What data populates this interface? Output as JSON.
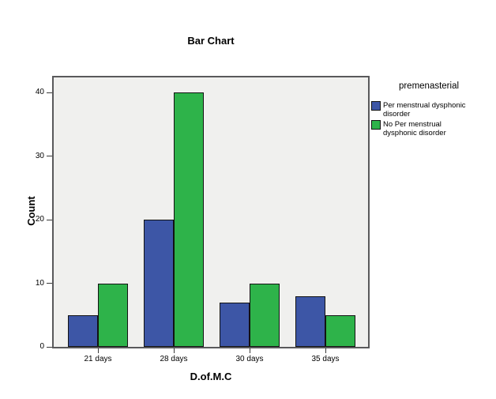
{
  "chart_data": {
    "type": "bar",
    "title": "Bar Chart",
    "categories": [
      "21 days",
      "28 days",
      "30 days",
      "35 days"
    ],
    "series": [
      {
        "name": "Per menstrual dysphonic disorder",
        "color": "#3d56a6",
        "values": [
          5,
          20,
          7,
          8
        ]
      },
      {
        "name": "No Per menstrual dysphonic disorder",
        "color": "#2eb34a",
        "values": [
          10,
          40,
          10,
          5
        ]
      }
    ],
    "xlabel": "D.of.M.C",
    "ylabel": "Count",
    "yticks": [
      0,
      10,
      20,
      30,
      40
    ],
    "ylim": [
      0,
      42.4
    ],
    "grid": false,
    "legend": {
      "title": "premenasterial",
      "position": "right"
    },
    "colors": {
      "plot_background": "#f0f0ee",
      "frame": "#59595b",
      "bar_border": "#121212",
      "tick": "#3a3a3a",
      "text": "#000000",
      "page_background": "#ffffff"
    }
  }
}
